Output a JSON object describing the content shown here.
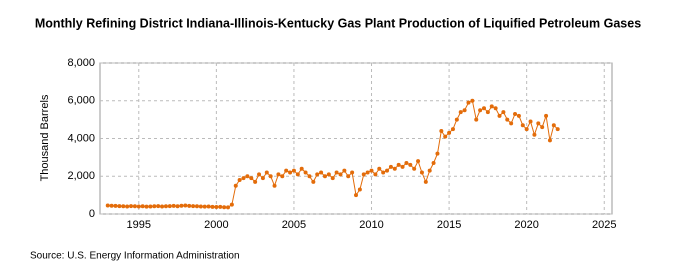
{
  "chart_data": {
    "type": "line",
    "title": "Monthly Refining District Indiana-Illinois-Kentucky Gas Plant Production of Liquified Petroleum Gases",
    "ylabel": "Thousand Barrels",
    "source": "Source: U.S. Energy Information Administration",
    "xlim": [
      1992.5,
      2025.5
    ],
    "xticks": [
      1995,
      2000,
      2005,
      2010,
      2015,
      2020,
      2025
    ],
    "ylim": [
      0,
      8000
    ],
    "yticks": [
      0,
      {
        "value": 2000,
        "label": "2,000"
      },
      {
        "value": 4000,
        "label": "4,000"
      },
      {
        "value": 6000,
        "label": "6,000"
      },
      {
        "value": 8000,
        "label": "8,000"
      }
    ],
    "grid": true,
    "x": [
      1993,
      1993.25,
      1993.5,
      1993.75,
      1994,
      1994.25,
      1994.5,
      1994.75,
      1995,
      1995.25,
      1995.5,
      1995.75,
      1996,
      1996.25,
      1996.5,
      1996.75,
      1997,
      1997.25,
      1997.5,
      1997.75,
      1998,
      1998.25,
      1998.5,
      1998.75,
      1999,
      1999.25,
      1999.5,
      1999.75,
      2000,
      2000.25,
      2000.5,
      2000.75,
      2001,
      2001.25,
      2001.5,
      2001.75,
      2002,
      2002.25,
      2002.5,
      2002.75,
      2003,
      2003.25,
      2003.5,
      2003.75,
      2004,
      2004.25,
      2004.5,
      2004.75,
      2005,
      2005.25,
      2005.5,
      2005.75,
      2006,
      2006.25,
      2006.5,
      2006.75,
      2007,
      2007.25,
      2007.5,
      2007.75,
      2008,
      2008.25,
      2008.5,
      2008.75,
      2009,
      2009.25,
      2009.5,
      2009.75,
      2010,
      2010.25,
      2010.5,
      2010.75,
      2011,
      2011.25,
      2011.5,
      2011.75,
      2012,
      2012.25,
      2012.5,
      2012.75,
      2013,
      2013.25,
      2013.5,
      2013.75,
      2014,
      2014.25,
      2014.5,
      2014.75,
      2015,
      2015.25,
      2015.5,
      2015.75,
      2016,
      2016.25,
      2016.5,
      2016.75,
      2017,
      2017.25,
      2017.5,
      2017.75,
      2018,
      2018.25,
      2018.5,
      2018.75,
      2019,
      2019.25,
      2019.5,
      2019.75,
      2020,
      2020.25,
      2020.5,
      2020.75,
      2021,
      2021.25,
      2021.5,
      2021.75,
      2022
    ],
    "series": [
      {
        "color": "#e36c0a",
        "values": [
          450,
          440,
          430,
          420,
          410,
          400,
          420,
          410,
          400,
          410,
          390,
          400,
          410,
          420,
          400,
          410,
          420,
          430,
          410,
          440,
          450,
          430,
          420,
          410,
          400,
          390,
          400,
          380,
          370,
          380,
          360,
          350,
          500,
          1500,
          1800,
          1900,
          2000,
          1900,
          1700,
          2100,
          1900,
          2200,
          2000,
          1500,
          2100,
          2000,
          2300,
          2200,
          2300,
          2100,
          2400,
          2200,
          2000,
          1700,
          2100,
          2200,
          2000,
          2100,
          1900,
          2200,
          2100,
          2300,
          2000,
          2200,
          1000,
          1300,
          2100,
          2200,
          2300,
          2100,
          2400,
          2200,
          2300,
          2500,
          2400,
          2600,
          2500,
          2700,
          2600,
          2400,
          2800,
          2200,
          1700,
          2300,
          2700,
          3200,
          4400,
          4100,
          4300,
          4500,
          5000,
          5400,
          5500,
          5900,
          6000,
          5000,
          5500,
          5600,
          5400,
          5700,
          5600,
          5200,
          5400,
          5000,
          4800,
          5300,
          5200,
          4700,
          4500,
          4900,
          4200,
          4800,
          4600,
          5200,
          3900,
          4700,
          4500
        ]
      }
    ]
  }
}
